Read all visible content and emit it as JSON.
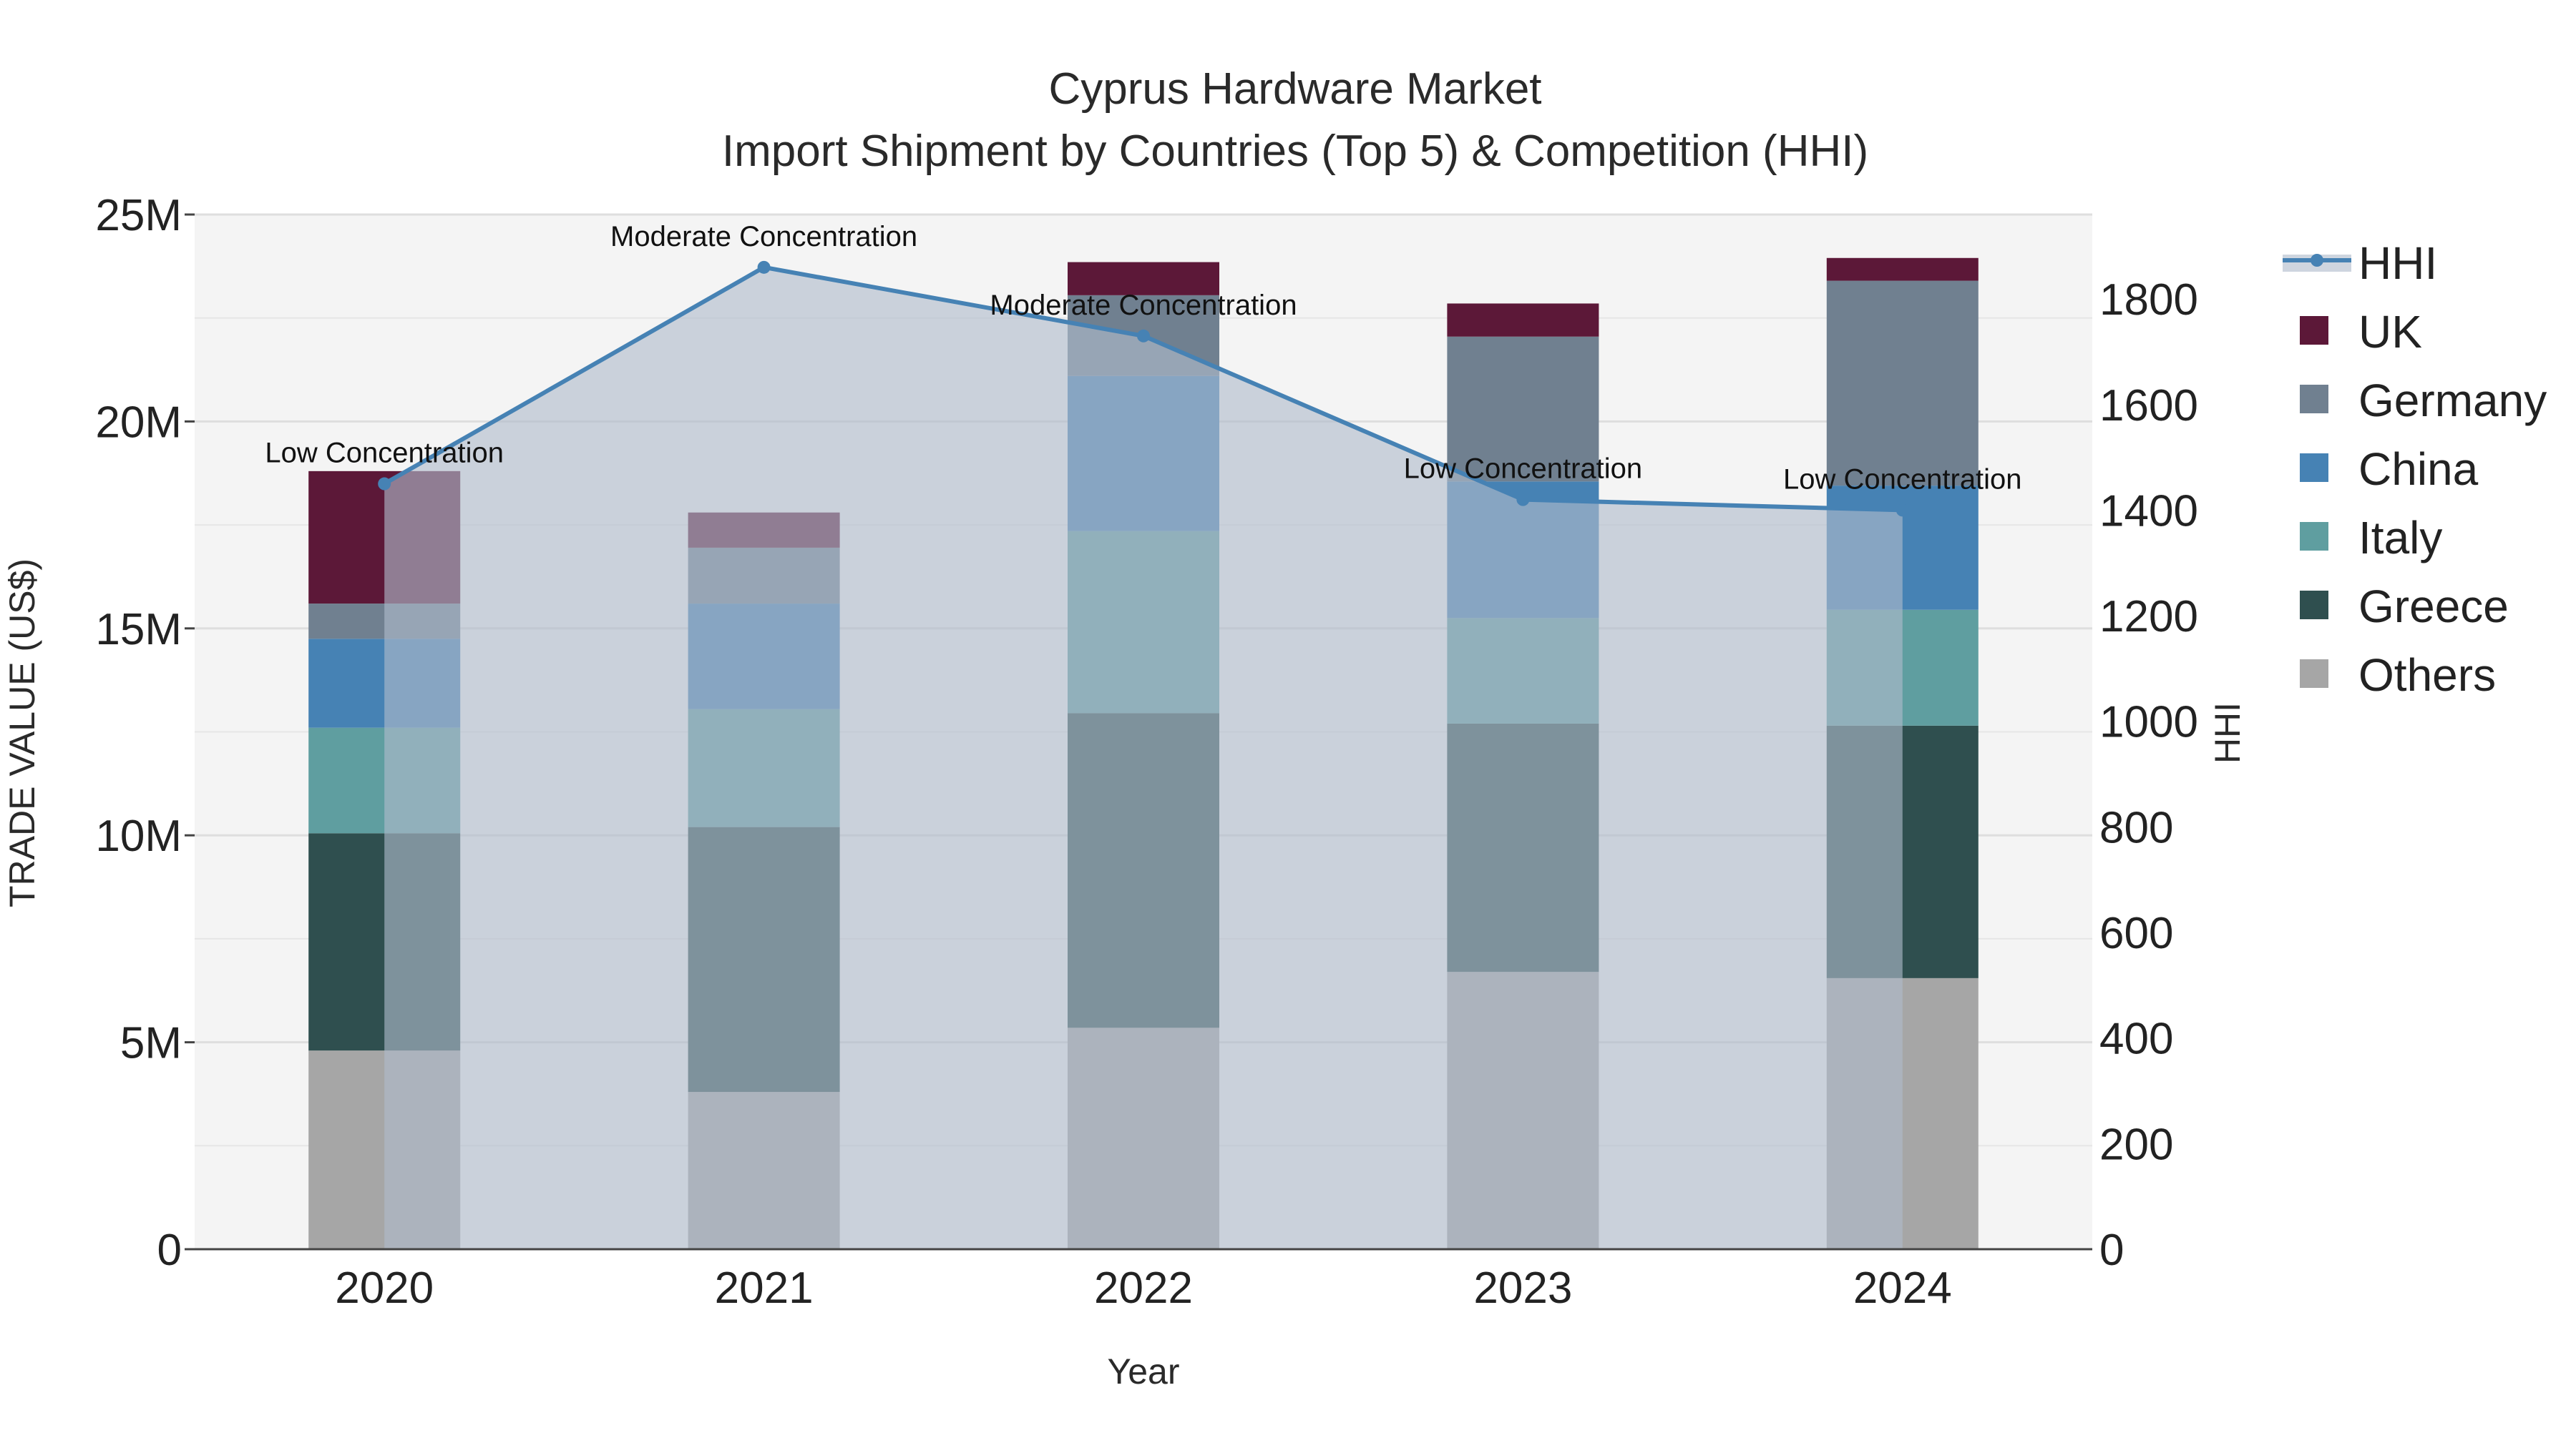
{
  "chart_data": {
    "type": "bar",
    "title": "Cyprus Hardware Market",
    "subtitle": "Import Shipment by Countries (Top 5) & Competition (HHI)",
    "xlabel": "Year",
    "ylabel": "TRADE VALUE (US$)",
    "y2label": "HHI",
    "categories": [
      "2020",
      "2021",
      "2022",
      "2023",
      "2024"
    ],
    "ylim": [
      0,
      25000000
    ],
    "y2lim": [
      0,
      1960
    ],
    "yticks": [
      {
        "value": 0,
        "label": "0"
      },
      {
        "value": 5000000,
        "label": "5M"
      },
      {
        "value": 10000000,
        "label": "10M"
      },
      {
        "value": 15000000,
        "label": "15M"
      },
      {
        "value": 20000000,
        "label": "20M"
      },
      {
        "value": 25000000,
        "label": "25M"
      }
    ],
    "y2ticks": [
      0,
      200,
      400,
      600,
      800,
      1000,
      1200,
      1400,
      1600,
      1800
    ],
    "series": [
      {
        "name": "Others",
        "color": "#a6a6a6",
        "values": [
          4800000,
          3800000,
          5350000,
          6700000,
          6550000
        ]
      },
      {
        "name": "Greece",
        "color": "#2f4f4f",
        "values": [
          5250000,
          6400000,
          7600000,
          6000000,
          6100000
        ]
      },
      {
        "name": "Italy",
        "color": "#5f9ea0",
        "values": [
          2550000,
          2850000,
          4400000,
          2550000,
          2800000
        ]
      },
      {
        "name": "China",
        "color": "#4682b4",
        "values": [
          2150000,
          2550000,
          3750000,
          3300000,
          3000000
        ]
      },
      {
        "name": "Germany",
        "color": "#708090",
        "values": [
          850000,
          1350000,
          1950000,
          3500000,
          4950000
        ]
      },
      {
        "name": "UK",
        "color": "#5c1838",
        "values": [
          3200000,
          850000,
          800000,
          800000,
          550000
        ]
      }
    ],
    "hhi": {
      "name": "HHI",
      "color": "#4682b4",
      "values": [
        1450,
        1860,
        1730,
        1420,
        1400
      ],
      "annotations": [
        "Low Concentration",
        "Moderate Concentration",
        "Moderate Concentration",
        "Low Concentration",
        "Low Concentration"
      ]
    },
    "legend_order": [
      "HHI",
      "UK",
      "Germany",
      "China",
      "Italy",
      "Greece",
      "Others"
    ],
    "legend_position": "right",
    "grid": true,
    "plot_background": "#f4f4f4"
  }
}
